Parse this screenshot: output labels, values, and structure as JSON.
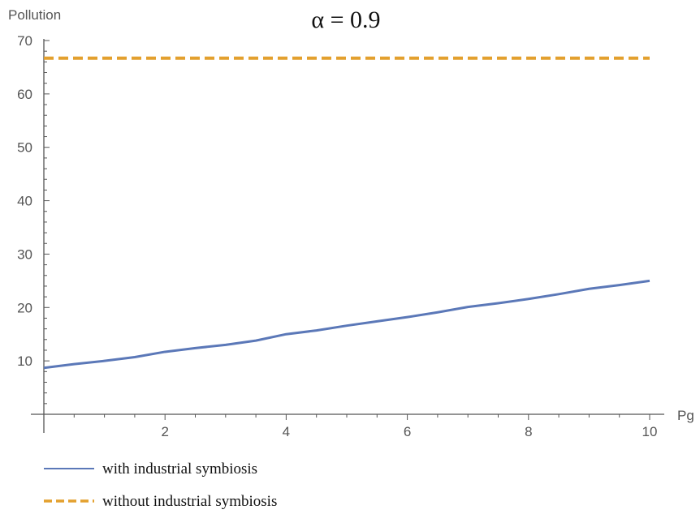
{
  "chart_data": {
    "type": "line",
    "title": "α = 0.9",
    "xlabel": "Pg",
    "ylabel": "Pollution",
    "xlim": [
      0,
      10
    ],
    "ylim": [
      0,
      70
    ],
    "x_ticks": [
      2,
      4,
      6,
      8,
      10
    ],
    "y_ticks": [
      10,
      20,
      30,
      40,
      50,
      60,
      70
    ],
    "grid": false,
    "legend_position": "bottom-left",
    "series": [
      {
        "name": "with industrial symbiosis",
        "color": "#5b78b8",
        "style": "solid",
        "x": [
          0,
          0.5,
          1,
          1.5,
          2,
          2.5,
          3,
          3.5,
          4,
          4.5,
          5,
          5.5,
          6,
          6.5,
          7,
          7.5,
          8,
          8.5,
          9,
          9.5,
          10
        ],
        "y": [
          8.7,
          9.4,
          10.0,
          10.7,
          11.7,
          12.4,
          13.0,
          13.8,
          15.0,
          15.7,
          16.6,
          17.4,
          18.2,
          19.1,
          20.1,
          20.8,
          21.6,
          22.5,
          23.5,
          24.2,
          25.0
        ]
      },
      {
        "name": "without industrial symbiosis",
        "color": "#e3a02e",
        "style": "dashed",
        "x": [
          0,
          10
        ],
        "y": [
          66.7,
          66.7
        ]
      }
    ]
  }
}
